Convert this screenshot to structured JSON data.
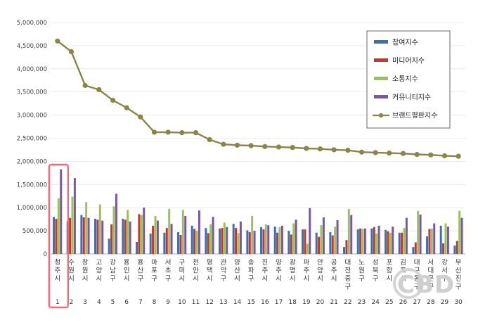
{
  "chart_data": {
    "type": "bar",
    "ylim": [
      0,
      5000000
    ],
    "yticks": [
      0,
      500000,
      1000000,
      1500000,
      2000000,
      2500000,
      3000000,
      3500000,
      4000000,
      4500000,
      5000000
    ],
    "ytick_labels": [
      "0",
      "500,000",
      "1,000,000",
      "1,500,000",
      "2,000,000",
      "2,500,000",
      "3,000,000",
      "3,500,000",
      "4,000,000",
      "4,500,000",
      "5,000,000"
    ],
    "categories": [
      "청주시",
      "수원시",
      "창원시",
      "고양시",
      "강남구",
      "용인시",
      "용산구",
      "마포구",
      "서초구",
      "구미시",
      "천안시",
      "평택시",
      "관악구",
      "양산시",
      "송파구",
      "진주시",
      "양주시",
      "광명시",
      "파주시",
      "안양시",
      "공주시",
      "대전중구",
      "노원구",
      "성북구",
      "포항시",
      "김포시",
      "대구동구",
      "서대문구",
      "강서구",
      "부산진구"
    ],
    "category_numbers": [
      "1",
      "2",
      "3",
      "4",
      "5",
      "6",
      "7",
      "8",
      "9",
      "10",
      "11",
      "12",
      "13",
      "14",
      "15",
      "16",
      "17",
      "18",
      "19",
      "20",
      "21",
      "22",
      "23",
      "24",
      "25",
      "26",
      "27",
      "28",
      "29",
      "30"
    ],
    "legend_position": "top-right",
    "highlight_index": 0,
    "series": [
      {
        "name": "참여지수",
        "color": "#3d6fb5",
        "values": [
          800000,
          700000,
          840000,
          760000,
          330000,
          760000,
          260000,
          440000,
          460000,
          470000,
          610000,
          560000,
          550000,
          650000,
          510000,
          580000,
          590000,
          500000,
          530000,
          460000,
          470000,
          150000,
          530000,
          550000,
          520000,
          460000,
          150000,
          380000,
          610000,
          180000
        ]
      },
      {
        "name": "미디어지수",
        "color": "#c0392b",
        "values": [
          760000,
          780000,
          790000,
          740000,
          640000,
          740000,
          860000,
          610000,
          560000,
          410000,
          540000,
          450000,
          560000,
          560000,
          470000,
          530000,
          460000,
          420000,
          530000,
          370000,
          400000,
          300000,
          550000,
          580000,
          490000,
          460000,
          250000,
          540000,
          230000,
          280000
        ]
      },
      {
        "name": "소통지수",
        "color": "#9bc25a",
        "values": [
          1200000,
          1240000,
          1120000,
          1070000,
          1030000,
          950000,
          840000,
          820000,
          970000,
          950000,
          500000,
          640000,
          680000,
          450000,
          820000,
          640000,
          580000,
          660000,
          220000,
          620000,
          590000,
          970000,
          540000,
          440000,
          460000,
          560000,
          930000,
          550000,
          660000,
          930000
        ]
      },
      {
        "name": "커뮤니티지수",
        "color": "#7a56a5",
        "values": [
          1830000,
          1640000,
          780000,
          720000,
          1300000,
          700000,
          1000000,
          720000,
          650000,
          820000,
          940000,
          800000,
          580000,
          700000,
          500000,
          620000,
          610000,
          740000,
          990000,
          790000,
          730000,
          840000,
          550000,
          610000,
          590000,
          780000,
          850000,
          660000,
          590000,
          780000
        ]
      }
    ],
    "line_series": {
      "name": "브랜드평판지수",
      "color": "#8c8548",
      "values": [
        4600000,
        4370000,
        3640000,
        3550000,
        3320000,
        3160000,
        2960000,
        2630000,
        2630000,
        2620000,
        2620000,
        2470000,
        2370000,
        2350000,
        2340000,
        2320000,
        2310000,
        2300000,
        2280000,
        2270000,
        2250000,
        2240000,
        2200000,
        2190000,
        2180000,
        2170000,
        2150000,
        2140000,
        2120000,
        2110000
      ]
    }
  },
  "watermark": "CBD"
}
